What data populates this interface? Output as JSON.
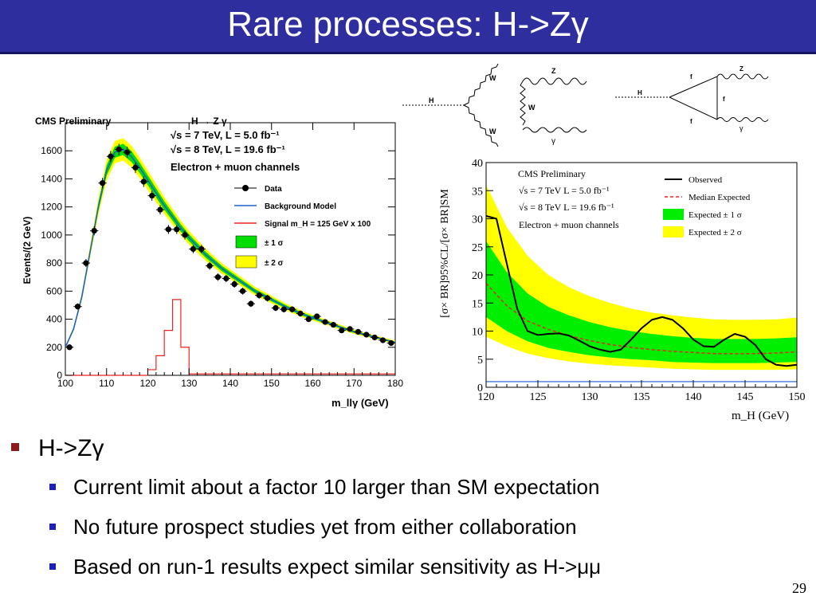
{
  "slide": {
    "title": "Rare processes: H->Zγ",
    "bullets": [
      {
        "text": "H->Zγ",
        "level": 1
      },
      {
        "text": "Current limit about a factor 10 larger than SM expectation",
        "level": 2
      },
      {
        "text": "No future prospect studies yet from either collaboration",
        "level": 2
      },
      {
        "text": "Based on run-1 results expect similar sensitivity as H->μμ",
        "level": 2
      }
    ],
    "page_number": "29",
    "colors": {
      "title_bg": "#2e2e9e",
      "bullet1": "#8b1a1a",
      "bullet2": "#1f1fb8"
    }
  },
  "diagrams": {
    "w_loop": {
      "h": "H",
      "w1": "W",
      "w2": "W",
      "w3": "W",
      "z": "Z",
      "gamma": "γ"
    },
    "f_loop": {
      "h": "H",
      "f1": "f",
      "f2": "f",
      "f3": "f",
      "z": "Z",
      "gamma": "γ"
    }
  },
  "chart_data": [
    {
      "type": "scatter",
      "header": "CMS Preliminary",
      "process": "H → Z γ",
      "lumi_lines": [
        "√s = 7 TeV, L = 5.0 fb⁻¹",
        "√s = 8 TeV, L = 19.6 fb⁻¹"
      ],
      "channel": "Electron + muon channels",
      "xlabel": "m_llγ (GeV)",
      "ylabel": "Events/(2 GeV)",
      "xlim": [
        100,
        180
      ],
      "ylim": [
        0,
        1800
      ],
      "xticks": [
        100,
        110,
        120,
        130,
        140,
        150,
        160,
        170,
        180
      ],
      "yticks": [
        0,
        200,
        400,
        600,
        800,
        1000,
        1200,
        1400,
        1600
      ],
      "legend": [
        "Data",
        "Background Model",
        "Signal m_H = 125 GeV x 100",
        "± 1 σ",
        "± 2 σ"
      ],
      "data_points": {
        "x": [
          101,
          103,
          105,
          107,
          109,
          111,
          113,
          115,
          117,
          119,
          121,
          123,
          125,
          127,
          129,
          131,
          133,
          135,
          137,
          139,
          141,
          143,
          145,
          147,
          149,
          151,
          153,
          155,
          157,
          159,
          161,
          163,
          165,
          167,
          169,
          171,
          173,
          175,
          177,
          179
        ],
        "y": [
          200,
          490,
          800,
          1030,
          1370,
          1560,
          1610,
          1590,
          1480,
          1380,
          1280,
          1180,
          1040,
          1040,
          1000,
          900,
          900,
          780,
          700,
          690,
          650,
          600,
          510,
          570,
          550,
          480,
          470,
          470,
          440,
          400,
          420,
          380,
          360,
          320,
          330,
          310,
          290,
          270,
          250,
          230
        ]
      },
      "background_model": {
        "x": [
          100,
          102,
          104,
          106,
          108,
          110,
          112,
          114,
          116,
          118,
          120,
          122,
          124,
          126,
          128,
          130,
          132,
          134,
          136,
          138,
          140,
          142,
          144,
          146,
          148,
          150,
          152,
          154,
          156,
          158,
          160,
          162,
          164,
          166,
          168,
          170,
          172,
          174,
          176,
          178,
          180
        ],
        "y": [
          200,
          330,
          560,
          880,
          1200,
          1460,
          1590,
          1610,
          1560,
          1480,
          1390,
          1300,
          1210,
          1130,
          1050,
          980,
          920,
          860,
          810,
          760,
          720,
          680,
          640,
          600,
          570,
          540,
          510,
          480,
          455,
          430,
          410,
          390,
          370,
          350,
          330,
          310,
          295,
          280,
          265,
          250,
          235
        ]
      },
      "signal_model": {
        "x": [
          100,
          118,
          120,
          122,
          124,
          126,
          128,
          130,
          180
        ],
        "y": [
          0,
          0,
          40,
          140,
          320,
          540,
          200,
          10,
          0
        ]
      }
    },
    {
      "type": "line",
      "header": "CMS Preliminary",
      "lumi_lines": [
        "√s = 7 TeV L = 5.0 fb⁻¹",
        "√s = 8 TeV L = 19.6 fb⁻¹"
      ],
      "channel": "Electron + muon channels",
      "xlabel": "m_H (GeV)",
      "ylabel": "[σ× BR]95%CL/[σ× BR]SM",
      "xlim": [
        120,
        150
      ],
      "ylim": [
        0,
        40
      ],
      "xticks": [
        120,
        125,
        130,
        135,
        140,
        145,
        150
      ],
      "yticks": [
        0,
        5,
        10,
        15,
        20,
        25,
        30,
        35,
        40
      ],
      "legend": [
        "Observed",
        "Median Expected",
        "Expected ± 1 σ",
        "Expected ± 2 σ"
      ],
      "series": [
        {
          "name": "Observed",
          "x": [
            120,
            121,
            122,
            123,
            124,
            125,
            126,
            127,
            128,
            129,
            130,
            131,
            132,
            133,
            134,
            135,
            136,
            137,
            138,
            139,
            140,
            141,
            142,
            143,
            144,
            145,
            146,
            147,
            148,
            149,
            150
          ],
          "y": [
            30.5,
            30,
            22,
            14,
            10,
            9.3,
            9.5,
            9.6,
            9.2,
            8.3,
            7.3,
            6.7,
            6.3,
            6.7,
            8.5,
            10.5,
            12,
            12.5,
            12,
            10.5,
            8.5,
            7.3,
            7.2,
            8.5,
            9.5,
            9,
            7.5,
            5,
            4,
            3.8,
            4
          ]
        },
        {
          "name": "Median Expected",
          "x": [
            120,
            122,
            124,
            126,
            128,
            130,
            132,
            134,
            136,
            138,
            140,
            142,
            144,
            146,
            148,
            150
          ],
          "y": [
            18.5,
            14.5,
            11.8,
            10.3,
            9.2,
            8.3,
            7.6,
            7.1,
            6.7,
            6.4,
            6.2,
            6,
            6,
            6,
            6.1,
            6.3
          ]
        }
      ],
      "bands": {
        "x": [
          120,
          122,
          124,
          126,
          128,
          130,
          132,
          134,
          136,
          138,
          140,
          142,
          144,
          146,
          148,
          150
        ],
        "one_sigma_low": [
          12.5,
          10,
          8.2,
          7,
          6.3,
          5.7,
          5.3,
          5,
          4.8,
          4.5,
          4.4,
          4.3,
          4.3,
          4.3,
          4.4,
          4.5
        ],
        "one_sigma_high": [
          26,
          20.5,
          16.7,
          14.3,
          12.8,
          11.6,
          10.7,
          10,
          9.5,
          9.1,
          8.8,
          8.6,
          8.6,
          8.6,
          8.7,
          8.9
        ],
        "two_sigma_low": [
          9,
          7.3,
          6,
          5.2,
          4.6,
          4.2,
          3.9,
          3.7,
          3.5,
          3.3,
          3.2,
          3.1,
          3.1,
          3.1,
          3.1,
          3.2
        ],
        "two_sigma_high": [
          36,
          28.5,
          23.4,
          20,
          17.8,
          16.2,
          15,
          14,
          13.3,
          12.8,
          12.4,
          12.1,
          12,
          12,
          12.1,
          12.4
        ]
      },
      "sm_line": 1
    }
  ]
}
